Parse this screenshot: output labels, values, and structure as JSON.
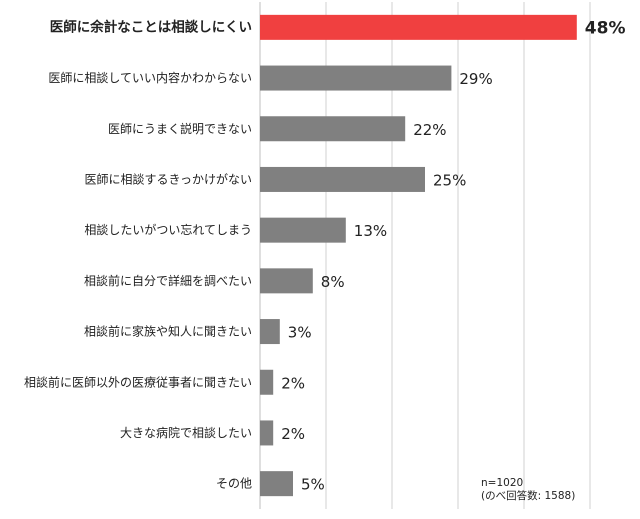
{
  "chart_data": {
    "type": "bar",
    "orientation": "horizontal",
    "categories": [
      "医師に余計なことは相談しにくい",
      "医師に相談していい内容かわからない",
      "医師にうまく説明できない",
      "医師に相談するきっかけがない",
      "相談したいがつい忘れてしまう",
      "相談前に自分で詳細を調べたい",
      "相談前に家族や知人に聞きたい",
      "相談前に医師以外の医療従事者に聞きたい",
      "大きな病院で相談したい",
      "その他"
    ],
    "values": [
      48,
      29,
      22,
      25,
      13,
      8,
      3,
      2,
      2,
      5
    ],
    "value_labels": [
      "48%",
      "29%",
      "22%",
      "25%",
      "13%",
      "8%",
      "3%",
      "2%",
      "2%",
      "5%"
    ],
    "highlight_index": 0,
    "xlim": [
      0,
      60
    ],
    "grid": true,
    "colors": {
      "bar": "#808080",
      "highlight": "#f04040",
      "highlight_text": "#e03030",
      "grid": "#d0d0d0"
    }
  },
  "note": {
    "line1": "n=1020",
    "line2": "(のべ回答数: 1588)"
  }
}
